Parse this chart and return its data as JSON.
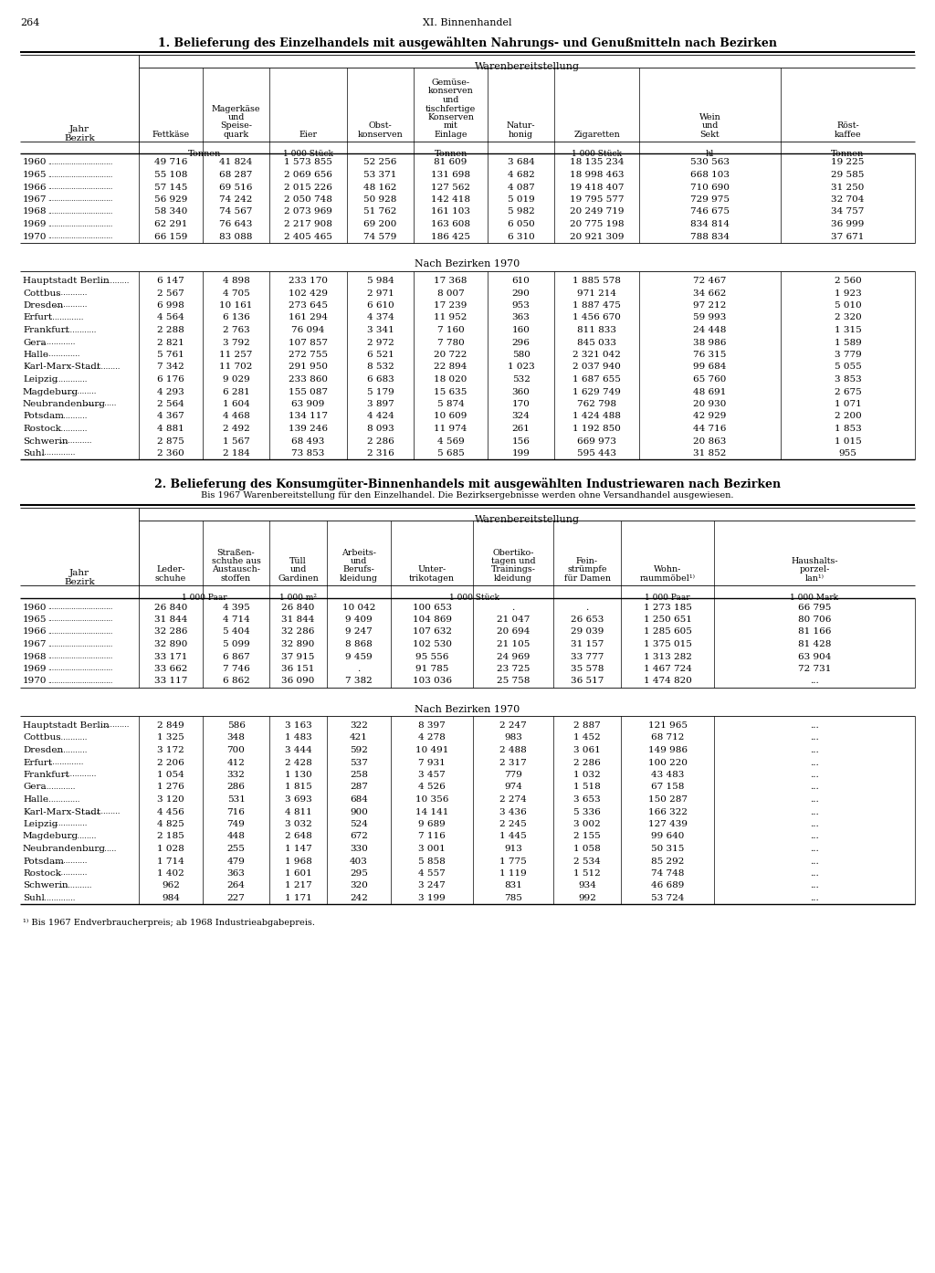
{
  "page_num": "264",
  "chapter": "XI. Binnenhandel",
  "table1_title": "1. Belieferung des Einzelhandels mit ausgewählten Nahrungs- und Genußmitteln nach Bezirken",
  "table1_header_main": "Warenbereitstellung",
  "table1_year_rows": [
    [
      "1960",
      "49 716",
      "41 824",
      "1 573 855",
      "52 256",
      "81 609",
      "3 684",
      "18 135 234",
      "530 563",
      "19 225"
    ],
    [
      "1965",
      "55 108",
      "68 287",
      "2 069 656",
      "53 371",
      "131 698",
      "4 682",
      "18 998 463",
      "668 103",
      "29 585"
    ],
    [
      "1966",
      "57 145",
      "69 516",
      "2 015 226",
      "48 162",
      "127 562",
      "4 087",
      "19 418 407",
      "710 690",
      "31 250"
    ],
    [
      "1967",
      "56 929",
      "74 242",
      "2 050 748",
      "50 928",
      "142 418",
      "5 019",
      "19 795 577",
      "729 975",
      "32 704"
    ],
    [
      "1968",
      "58 340",
      "74 567",
      "2 073 969",
      "51 762",
      "161 103",
      "5 982",
      "20 249 719",
      "746 675",
      "34 757"
    ],
    [
      "1969",
      "62 291",
      "76 643",
      "2 217 908",
      "69 200",
      "163 608",
      "6 050",
      "20 775 198",
      "834 814",
      "36 999"
    ],
    [
      "1970",
      "66 159",
      "83 088",
      "2 405 465",
      "74 579",
      "186 425",
      "6 310",
      "20 921 309",
      "788 834",
      "37 671"
    ]
  ],
  "table1_bezirk_header": "Nach Bezirken 1970",
  "table1_bezirk_rows": [
    [
      "Hauptstadt Berlin",
      "6 147",
      "4 898",
      "233 170",
      "5 984",
      "17 368",
      "610",
      "1 885 578",
      "72 467",
      "2 560"
    ],
    [
      "Cottbus",
      "2 567",
      "4 705",
      "102 429",
      "2 971",
      "8 007",
      "290",
      "971 214",
      "34 662",
      "1 923"
    ],
    [
      "Dresden",
      "6 998",
      "10 161",
      "273 645",
      "6 610",
      "17 239",
      "953",
      "1 887 475",
      "97 212",
      "5 010"
    ],
    [
      "Erfurt",
      "4 564",
      "6 136",
      "161 294",
      "4 374",
      "11 952",
      "363",
      "1 456 670",
      "59 993",
      "2 320"
    ],
    [
      "Frankfurt",
      "2 288",
      "2 763",
      "76 094",
      "3 341",
      "7 160",
      "160",
      "811 833",
      "24 448",
      "1 315"
    ],
    [
      "Gera",
      "2 821",
      "3 792",
      "107 857",
      "2 972",
      "7 780",
      "296",
      "845 033",
      "38 986",
      "1 589"
    ],
    [
      "Halle",
      "5 761",
      "11 257",
      "272 755",
      "6 521",
      "20 722",
      "580",
      "2 321 042",
      "76 315",
      "3 779"
    ],
    [
      "Karl-Marx-Stadt",
      "7 342",
      "11 702",
      "291 950",
      "8 532",
      "22 894",
      "1 023",
      "2 037 940",
      "99 684",
      "5 055"
    ],
    [
      "Leipzig",
      "6 176",
      "9 029",
      "233 860",
      "6 683",
      "18 020",
      "532",
      "1 687 655",
      "65 760",
      "3 853"
    ],
    [
      "Magdeburg",
      "4 293",
      "6 281",
      "155 087",
      "5 179",
      "15 635",
      "360",
      "1 629 749",
      "48 691",
      "2 675"
    ],
    [
      "Neubrandenburg",
      "2 564",
      "1 604",
      "63 909",
      "3 897",
      "5 874",
      "170",
      "762 798",
      "20 930",
      "1 071"
    ],
    [
      "Potsdam",
      "4 367",
      "4 468",
      "134 117",
      "4 424",
      "10 609",
      "324",
      "1 424 488",
      "42 929",
      "2 200"
    ],
    [
      "Rostock",
      "4 881",
      "2 492",
      "139 246",
      "8 093",
      "11 974",
      "261",
      "1 192 850",
      "44 716",
      "1 853"
    ],
    [
      "Schwerin",
      "2 875",
      "1 567",
      "68 493",
      "2 286",
      "4 569",
      "156",
      "669 973",
      "20 863",
      "1 015"
    ],
    [
      "Suhl",
      "2 360",
      "2 184",
      "73 853",
      "2 316",
      "5 685",
      "199",
      "595 443",
      "31 852",
      "955"
    ]
  ],
  "table2_title": "2. Belieferung des Konsumgüter-Binnenhandels mit ausgewählten Industriewaren nach Bezirken",
  "table2_subtitle": "Bis 1967 Warenbereitstellung für den Einzelhandel. Die Bezirksergebnisse werden ohne Versandhandel ausgewiesen.",
  "table2_header_main": "Warenbereitstellung",
  "table2_year_rows": [
    [
      "1960",
      "26 840",
      "4 395",
      "26 840",
      "10 042",
      "100 653",
      ".",
      ".",
      "1 273 185",
      "66 795"
    ],
    [
      "1965",
      "31 844",
      "4 714",
      "31 844",
      "9 409",
      "104 869",
      "21 047",
      "26 653",
      "1 250 651",
      "80 706"
    ],
    [
      "1966",
      "32 286",
      "5 404",
      "32 286",
      "9 247",
      "107 632",
      "20 694",
      "29 039",
      "1 285 605",
      "81 166"
    ],
    [
      "1967",
      "32 890",
      "5 099",
      "32 890",
      "8 868",
      "102 530",
      "21 105",
      "31 157",
      "1 375 015",
      "81 428"
    ],
    [
      "1968",
      "33 171",
      "6 867",
      "37 915",
      "9 459",
      "95 556",
      "24 969",
      "33 777",
      "1 313 282",
      "63 904"
    ],
    [
      "1969",
      "33 662",
      "7 746",
      "36 151",
      ".",
      "91 785",
      "23 725",
      "35 578",
      "1 467 724",
      "72 731"
    ],
    [
      "1970",
      "33 117",
      "6 862",
      "36 090",
      "7 382",
      "103 036",
      "25 758",
      "36 517",
      "1 474 820",
      "..."
    ]
  ],
  "table2_bezirk_header": "Nach Bezirken 1970",
  "table2_bezirk_rows": [
    [
      "Hauptstadt Berlin",
      "2 849",
      "586",
      "3 163",
      "322",
      "8 397",
      "2 247",
      "2 887",
      "121 965",
      "..."
    ],
    [
      "Cottbus",
      "1 325",
      "348",
      "1 483",
      "421",
      "4 278",
      "983",
      "1 452",
      "68 712",
      "..."
    ],
    [
      "Dresden",
      "3 172",
      "700",
      "3 444",
      "592",
      "10 491",
      "2 488",
      "3 061",
      "149 986",
      "..."
    ],
    [
      "Erfurt",
      "2 206",
      "412",
      "2 428",
      "537",
      "7 931",
      "2 317",
      "2 286",
      "100 220",
      "..."
    ],
    [
      "Frankfurt",
      "1 054",
      "332",
      "1 130",
      "258",
      "3 457",
      "779",
      "1 032",
      "43 483",
      "..."
    ],
    [
      "Gera",
      "1 276",
      "286",
      "1 815",
      "287",
      "4 526",
      "974",
      "1 518",
      "67 158",
      "..."
    ],
    [
      "Halle",
      "3 120",
      "531",
      "3 693",
      "684",
      "10 356",
      "2 274",
      "3 653",
      "150 287",
      "..."
    ],
    [
      "Karl-Marx-Stadt",
      "4 456",
      "716",
      "4 811",
      "900",
      "14 141",
      "3 436",
      "5 336",
      "166 322",
      "..."
    ],
    [
      "Leipzig",
      "4 825",
      "749",
      "3 032",
      "524",
      "9 689",
      "2 245",
      "3 002",
      "127 439",
      "..."
    ],
    [
      "Magdeburg",
      "2 185",
      "448",
      "2 648",
      "672",
      "7 116",
      "1 445",
      "2 155",
      "99 640",
      "..."
    ],
    [
      "Neubrandenburg",
      "1 028",
      "255",
      "1 147",
      "330",
      "3 001",
      "913",
      "1 058",
      "50 315",
      "..."
    ],
    [
      "Potsdam",
      "1 714",
      "479",
      "1 968",
      "403",
      "5 858",
      "1 775",
      "2 534",
      "85 292",
      "..."
    ],
    [
      "Rostock",
      "1 402",
      "363",
      "1 601",
      "295",
      "4 557",
      "1 119",
      "1 512",
      "74 748",
      "..."
    ],
    [
      "Schwerin",
      "962",
      "264",
      "1 217",
      "320",
      "3 247",
      "831",
      "934",
      "46 689",
      "..."
    ],
    [
      "Suhl",
      "984",
      "227",
      "1 171",
      "242",
      "3 199",
      "785",
      "992",
      "53 724",
      "..."
    ]
  ],
  "table2_footnote": "¹⁾ Bis 1967 Endverbraucherpreis; ab 1968 Industrieabgabepreis."
}
